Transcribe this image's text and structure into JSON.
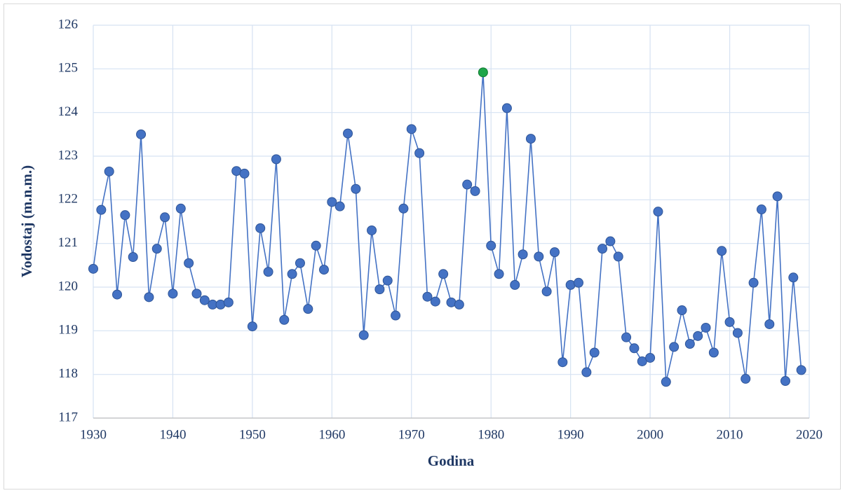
{
  "chart_data": {
    "type": "line",
    "x_label": "Godina",
    "y_label": "Vodostaj (m.n.m.)",
    "x": [
      1930,
      1931,
      1932,
      1933,
      1934,
      1935,
      1936,
      1937,
      1938,
      1939,
      1940,
      1941,
      1942,
      1943,
      1944,
      1945,
      1946,
      1947,
      1948,
      1949,
      1950,
      1951,
      1952,
      1953,
      1954,
      1955,
      1956,
      1957,
      1958,
      1959,
      1960,
      1961,
      1962,
      1963,
      1964,
      1965,
      1966,
      1967,
      1968,
      1969,
      1970,
      1971,
      1972,
      1973,
      1974,
      1975,
      1976,
      1977,
      1978,
      1979,
      1980,
      1981,
      1982,
      1983,
      1984,
      1985,
      1986,
      1987,
      1988,
      1989,
      1990,
      1991,
      1992,
      1993,
      1994,
      1995,
      1996,
      1997,
      1998,
      1999,
      2000,
      2001,
      2002,
      2003,
      2004,
      2005,
      2006,
      2007,
      2008,
      2009,
      2010,
      2011,
      2012,
      2013,
      2014,
      2015,
      2016,
      2017,
      2018,
      2019
    ],
    "series": [
      {
        "name": "Vodostaj",
        "color": "#4472c4",
        "values": [
          120.42,
          121.77,
          122.65,
          119.83,
          121.65,
          120.69,
          123.5,
          119.77,
          120.88,
          121.6,
          119.85,
          121.8,
          120.55,
          119.85,
          119.7,
          119.6,
          119.6,
          119.65,
          122.66,
          122.6,
          119.1,
          121.35,
          120.35,
          122.93,
          119.25,
          120.3,
          120.55,
          119.5,
          120.95,
          120.4,
          121.95,
          121.85,
          123.52,
          122.25,
          118.9,
          121.3,
          119.95,
          120.15,
          119.35,
          121.8,
          123.62,
          123.07,
          119.78,
          119.67,
          120.3,
          119.65,
          119.6,
          122.35,
          122.2,
          124.92,
          120.95,
          120.3,
          124.1,
          120.05,
          120.75,
          123.4,
          120.7,
          119.9,
          120.8,
          118.28,
          120.05,
          120.1,
          118.05,
          118.5,
          120.88,
          121.05,
          120.7,
          118.85,
          118.6,
          118.3,
          118.38,
          121.73,
          117.83,
          118.63,
          119.47,
          118.7,
          118.88,
          119.07,
          118.5,
          120.83,
          119.2,
          118.95,
          117.9,
          120.1,
          121.78,
          119.15,
          122.08,
          117.85,
          120.22,
          118.1
        ]
      }
    ],
    "highlight": {
      "x": 1979,
      "color": "#1fa64a"
    },
    "xlim": [
      1930,
      2020
    ],
    "xticks": [
      1930,
      1940,
      1950,
      1960,
      1970,
      1980,
      1990,
      2000,
      2010,
      2020
    ],
    "ylim": [
      117,
      126
    ],
    "yticks": [
      117,
      118,
      119,
      120,
      121,
      122,
      123,
      124,
      125,
      126
    ],
    "grid": true
  }
}
